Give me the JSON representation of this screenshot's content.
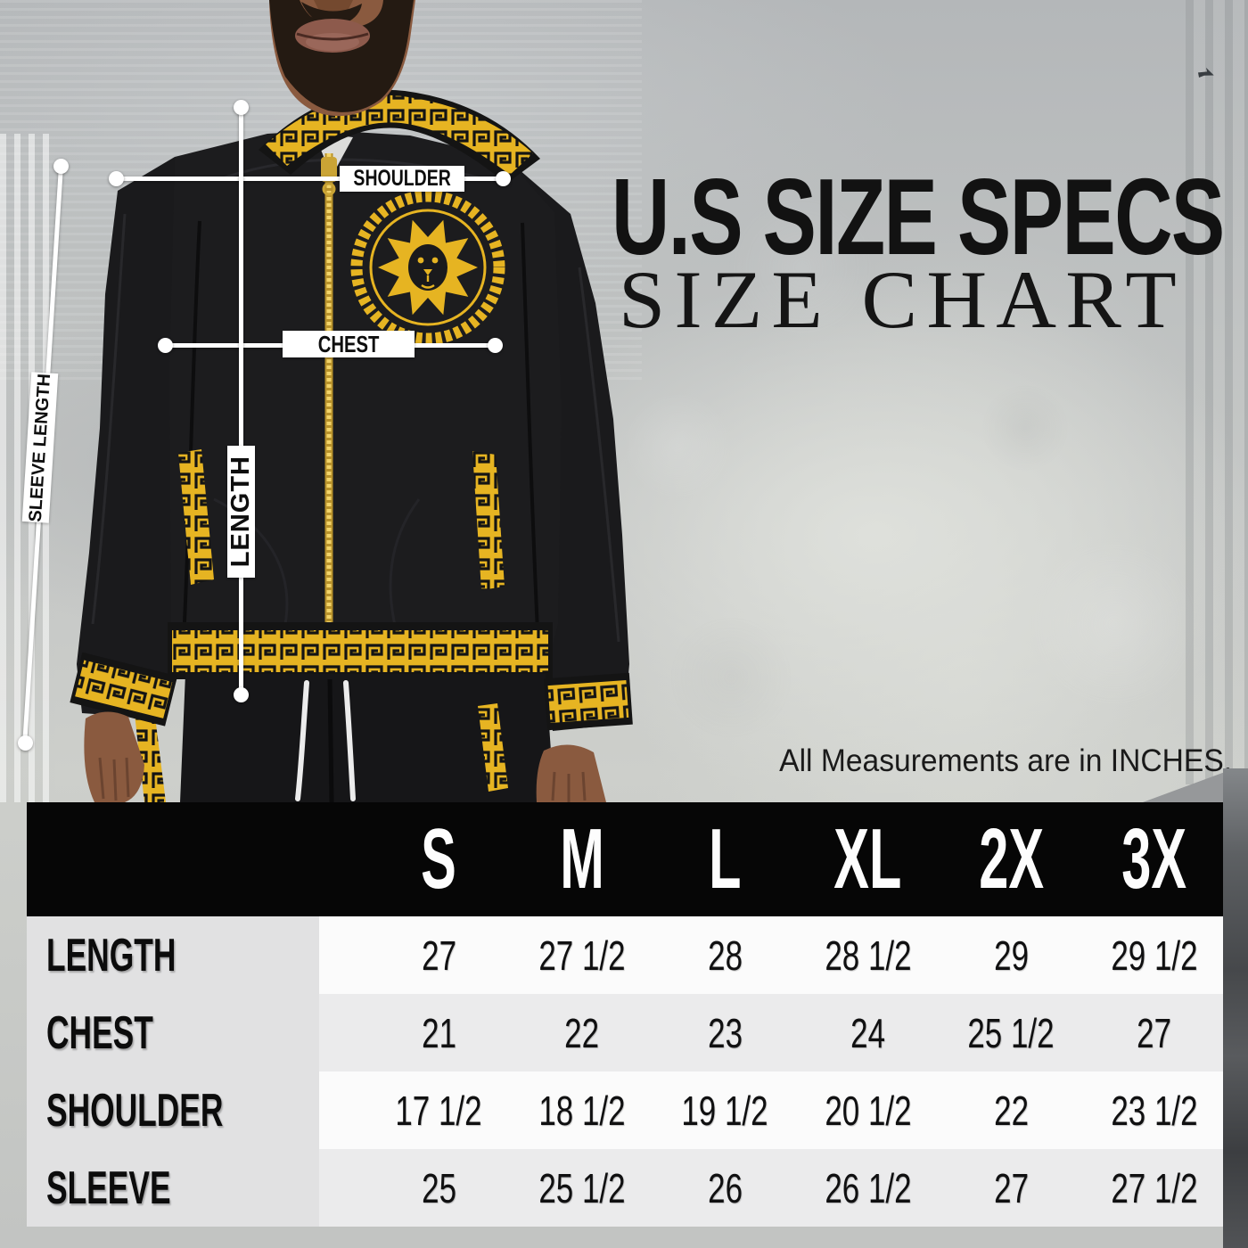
{
  "figure": {
    "title_line1": "U.S SIZE SPECS",
    "title_line2": "SIZE CHART",
    "measurement_note": "All Measurements are in INCHES.",
    "annotations": {
      "shoulder": "SHOULDER",
      "chest": "CHEST",
      "length": "LENGTH",
      "sleeve_length": "SLEEVE LENGTH"
    }
  },
  "chart_data": {
    "type": "table",
    "title": "U.S SIZE SPECS — SIZE CHART",
    "units": "INCHES",
    "columns": [
      "S",
      "M",
      "L",
      "XL",
      "2X",
      "3X"
    ],
    "rows": [
      {
        "label": "LENGTH",
        "values": [
          "27",
          "27 1/2",
          "28",
          "28 1/2",
          "29",
          "29 1/2"
        ]
      },
      {
        "label": "CHEST",
        "values": [
          "21",
          "22",
          "23",
          "24",
          "25 1/2",
          "27"
        ]
      },
      {
        "label": "SHOULDER",
        "values": [
          "17 1/2",
          "18 1/2",
          "19 1/2",
          "20 1/2",
          "22",
          "23 1/2"
        ]
      },
      {
        "label": "SLEEVE",
        "values": [
          "25",
          "25 1/2",
          "26",
          "26 1/2",
          "27",
          "27 1/2"
        ]
      }
    ]
  },
  "colors": {
    "gold_trim": "#e6b422",
    "jacket_black": "#19191b",
    "table_header_black": "#060606",
    "row_alt_gray": "#ebebec",
    "label_cell_gray": "#e1e1e2",
    "background_gray": "#b9bcbd",
    "annotation_white": "#ffffff"
  }
}
